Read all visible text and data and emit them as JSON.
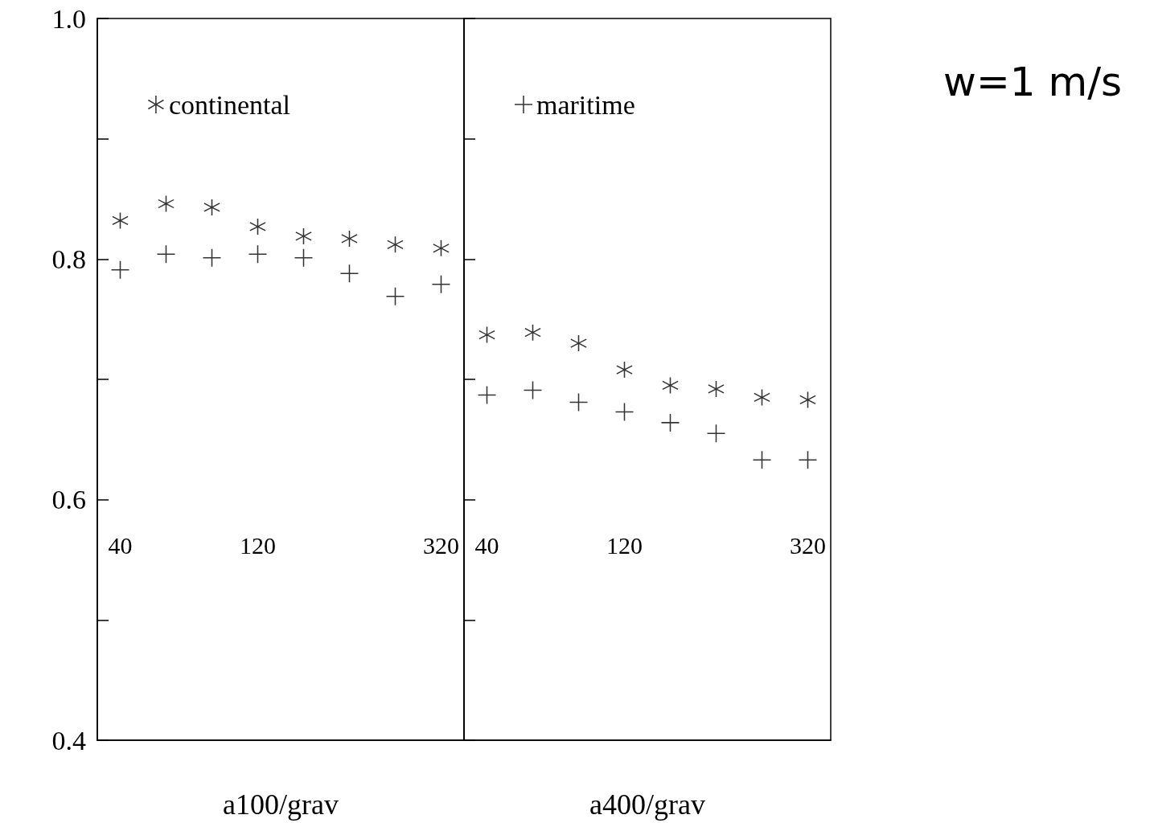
{
  "chart_data": [
    {
      "type": "scatter",
      "xlabel": "a100/grav",
      "categories": [
        "40",
        null,
        null,
        "120",
        null,
        null,
        null,
        "320"
      ],
      "ylim": [
        0.4,
        1.0
      ],
      "yticks": [
        0.4,
        {
          "value": 0.5,
          "label": null
        },
        0.6,
        {
          "value": 0.7,
          "label": null
        },
        0.8,
        {
          "value": 0.9,
          "label": null
        },
        {
          "value": 1.0,
          "label": "1.0"
        }
      ],
      "grid": false,
      "legend": "top left",
      "series": [
        {
          "name": "continental",
          "color": "#000000",
          "marker": "star",
          "values": [
            0.832,
            0.846,
            0.843,
            0.827,
            0.819,
            0.817,
            0.812,
            0.809
          ]
        },
        {
          "color": "#000000",
          "marker": "cross",
          "values": [
            0.791,
            0.804,
            0.801,
            0.804,
            0.801,
            0.788,
            0.769,
            0.779
          ]
        }
      ]
    },
    {
      "type": "scatter",
      "xlabel": "a400/grav",
      "categories": [
        "40",
        null,
        null,
        "120",
        null,
        null,
        null,
        "320"
      ],
      "ylim": [
        0.4,
        1.0
      ],
      "yticks": [
        0.4,
        0.5,
        0.6,
        0.7,
        0.8,
        0.9,
        1.0
      ],
      "grid": false,
      "legend": "top left",
      "tick_labels": "x",
      "series": [
        {
          "color": "#000000",
          "marker": "star",
          "values": [
            0.737,
            0.739,
            0.73,
            0.708,
            0.695,
            0.692,
            0.685,
            0.683
          ]
        },
        {
          "name": "maritime",
          "color": "#000000",
          "marker": "cross",
          "values": [
            0.687,
            0.691,
            0.681,
            0.673,
            0.664,
            0.655,
            0.633,
            0.633
          ]
        }
      ]
    },
    {
      "type": "other",
      "title": "w=1 m/s"
    }
  ]
}
